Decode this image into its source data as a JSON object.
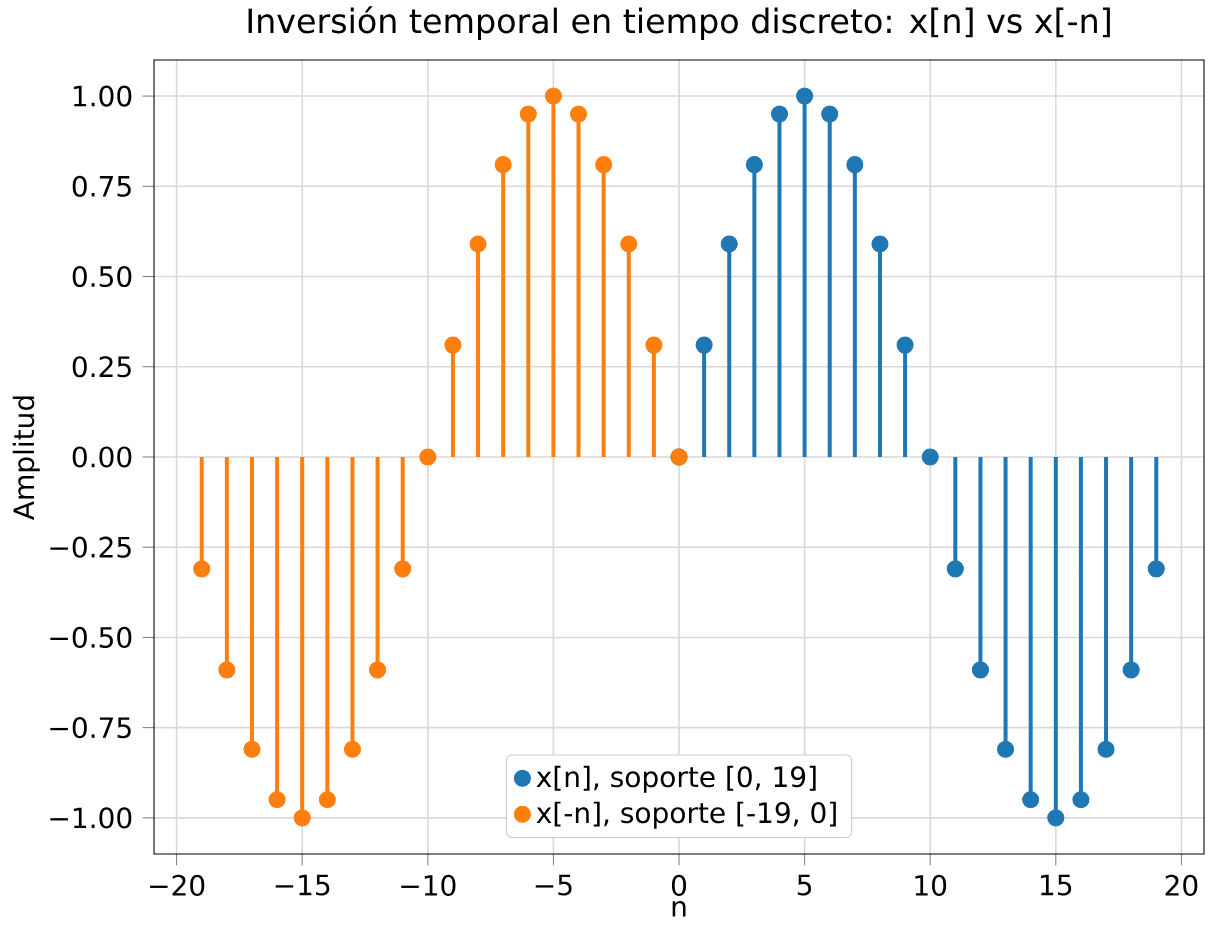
{
  "chart_data": {
    "type": "lollipop",
    "title": "Inversión temporal en tiempo discreto: x[n] vs x[-n]",
    "xlabel": "n",
    "ylabel": "Amplitud",
    "series": [
      {
        "name": "x[n], soporte [0, 19]",
        "color": "#1f77b4",
        "x": [
          0,
          1,
          2,
          3,
          4,
          5,
          6,
          7,
          8,
          9,
          10,
          11,
          12,
          13,
          14,
          15,
          16,
          17,
          18,
          19
        ],
        "values": [
          0,
          0.31,
          0.59,
          0.81,
          0.95,
          1,
          0.95,
          0.81,
          0.59,
          0.31,
          0,
          -0.31,
          -0.59,
          -0.81,
          -0.95,
          -1,
          -0.95,
          -0.81,
          -0.59,
          -0.31
        ]
      },
      {
        "name": "x[-n], soporte [-19, 0]",
        "color": "#ff7f0e",
        "x": [
          -19,
          -18,
          -17,
          -16,
          -15,
          -14,
          -13,
          -12,
          -11,
          -10,
          -9,
          -8,
          -7,
          -6,
          -5,
          -4,
          -3,
          -2,
          -1,
          0
        ],
        "values": [
          -0.31,
          -0.59,
          -0.81,
          -0.95,
          -1,
          -0.95,
          -0.81,
          -0.59,
          -0.31,
          0,
          0.31,
          0.59,
          0.81,
          0.95,
          1,
          0.95,
          0.81,
          0.59,
          0.31,
          0
        ]
      }
    ],
    "xlim": [
      -20.9,
      20.9
    ],
    "ylim": [
      -1.1,
      1.1
    ],
    "xticks": [
      {
        "value": -20,
        "label": "−20"
      },
      {
        "value": -15,
        "label": "−15"
      },
      {
        "value": -10,
        "label": "−10"
      },
      {
        "value": -5,
        "label": "−5"
      },
      0,
      5,
      10,
      15,
      20
    ],
    "yticks": [
      {
        "value": -1,
        "label": "−1.00"
      },
      {
        "value": -0.75,
        "label": "−0.75"
      },
      {
        "value": -0.5,
        "label": "−0.50"
      },
      {
        "value": -0.25,
        "label": "−0.25"
      },
      {
        "value": 0,
        "label": "0.00"
      },
      {
        "value": 0.25,
        "label": "0.25"
      },
      {
        "value": 0.5,
        "label": "0.50"
      },
      {
        "value": 0.75,
        "label": "0.75"
      },
      {
        "value": 1,
        "label": "1.00"
      }
    ],
    "grid": true,
    "legend": "bottom",
    "marker": "circle"
  }
}
